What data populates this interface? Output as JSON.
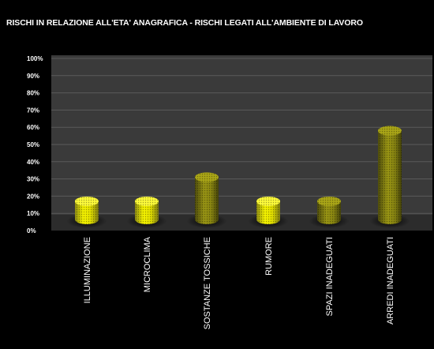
{
  "chart_data": {
    "type": "bar",
    "title": "RISCHI IN RELAZIONE ALL'ETA' ANAGRAFICA - RISCHI LEGATI ALL'AMBIENTE DI LAVORO",
    "categories": [
      "ILLUMINAZIONE",
      "MICROCLIMA",
      "SOSTANZE TOSSICHE",
      "RUMORE",
      "SPAZI INADEGUATI",
      "ARREDI INADEGUATI"
    ],
    "values": [
      17,
      17,
      31,
      17,
      17,
      58
    ],
    "y_ticks": [
      "0%",
      "10%",
      "20%",
      "30%",
      "40%",
      "50%",
      "60%",
      "70%",
      "80%",
      "90%",
      "100%"
    ],
    "ylim": [
      0,
      100
    ],
    "grid": true,
    "colors": {
      "background": "#000000",
      "plot_area": "#3a3a3a",
      "gridline": "#5a5a5a",
      "text": "#ffffff",
      "bar_light": "#f2f000",
      "bar_dark": "#6f6c10"
    }
  }
}
